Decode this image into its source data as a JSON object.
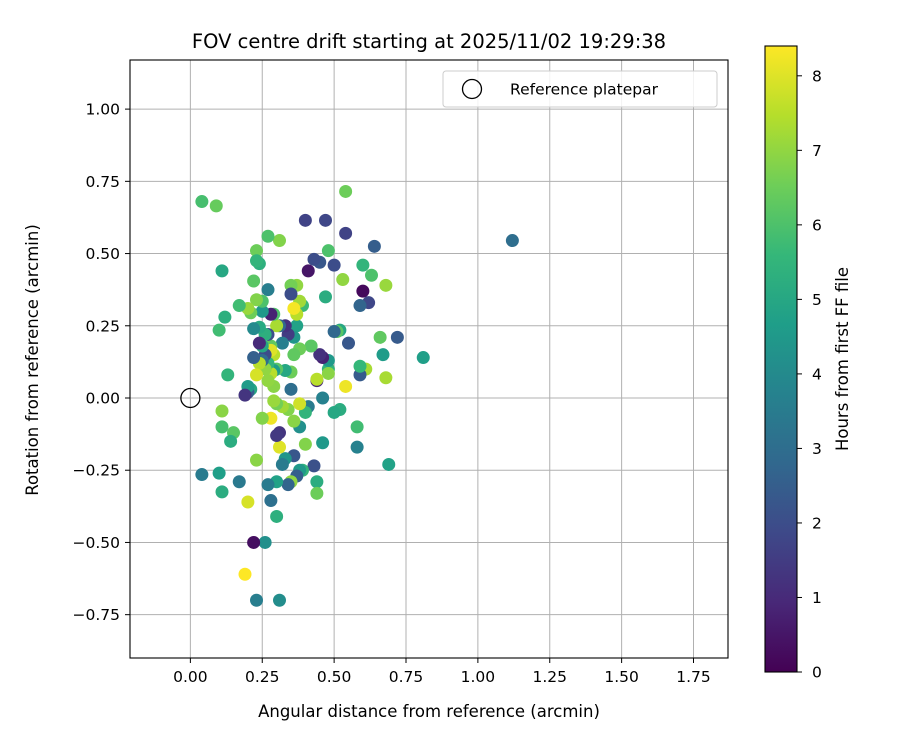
{
  "chart_data": {
    "type": "scatter",
    "title": "FOV centre drift starting at 2025/11/02 19:29:38",
    "xlabel": "Angular distance from reference (arcmin)",
    "ylabel": "Rotation from reference (arcmin)",
    "xlim": [
      -0.21,
      1.87
    ],
    "ylim": [
      -0.9,
      1.17
    ],
    "xticks": [
      0.0,
      0.25,
      0.5,
      0.75,
      1.0,
      1.25,
      1.5,
      1.75
    ],
    "xtick_labels": [
      "0.00",
      "0.25",
      "0.50",
      "0.75",
      "1.00",
      "1.25",
      "1.50",
      "1.75"
    ],
    "yticks": [
      -0.75,
      -0.5,
      -0.25,
      0.0,
      0.25,
      0.5,
      0.75,
      1.0
    ],
    "ytick_labels": [
      "−0.75",
      "−0.50",
      "−0.25",
      "0.00",
      "0.25",
      "0.50",
      "0.75",
      "1.00"
    ],
    "grid": true,
    "legend": {
      "position": "top-right",
      "entries": [
        "Reference platepar"
      ]
    },
    "reference_point": {
      "x": 0.0,
      "y": 0.0,
      "label": "Reference platepar"
    },
    "colorbar": {
      "label": "Hours from first FF file",
      "range": [
        0,
        8.4
      ],
      "ticks": [
        0,
        1,
        2,
        3,
        4,
        5,
        6,
        7,
        8
      ],
      "tick_labels": [
        "0",
        "1",
        "2",
        "3",
        "4",
        "5",
        "6",
        "7",
        "8"
      ],
      "colormap": "viridis"
    },
    "colormap_stops": [
      "#440154",
      "#482878",
      "#3e4989",
      "#31688e",
      "#26828e",
      "#1f9e89",
      "#35b779",
      "#6ece58",
      "#b5de2b",
      "#fde725"
    ],
    "points": [
      {
        "x": 1.12,
        "y": 0.545,
        "c": 3.0
      },
      {
        "x": 0.81,
        "y": 0.14,
        "c": 4.7
      },
      {
        "x": 0.72,
        "y": 0.21,
        "c": 2.4
      },
      {
        "x": 0.69,
        "y": -0.23,
        "c": 4.8
      },
      {
        "x": 0.68,
        "y": 0.07,
        "c": 7.3
      },
      {
        "x": 0.68,
        "y": 0.39,
        "c": 7.1
      },
      {
        "x": 0.67,
        "y": 0.15,
        "c": 4.6
      },
      {
        "x": 0.66,
        "y": 0.21,
        "c": 6.3
      },
      {
        "x": 0.64,
        "y": 0.525,
        "c": 2.5
      },
      {
        "x": 0.63,
        "y": 0.425,
        "c": 6.0
      },
      {
        "x": 0.62,
        "y": 0.33,
        "c": 1.8
      },
      {
        "x": 0.61,
        "y": 0.1,
        "c": 7.3
      },
      {
        "x": 0.6,
        "y": 0.37,
        "c": 0.2
      },
      {
        "x": 0.6,
        "y": 0.46,
        "c": 5.5
      },
      {
        "x": 0.59,
        "y": 0.08,
        "c": 2.4
      },
      {
        "x": 0.59,
        "y": 0.32,
        "c": 2.7
      },
      {
        "x": 0.59,
        "y": 0.11,
        "c": 5.6
      },
      {
        "x": 0.58,
        "y": -0.1,
        "c": 5.8
      },
      {
        "x": 0.58,
        "y": -0.17,
        "c": 3.7
      },
      {
        "x": 0.55,
        "y": 0.19,
        "c": 2.3
      },
      {
        "x": 0.54,
        "y": 0.57,
        "c": 1.7
      },
      {
        "x": 0.54,
        "y": 0.715,
        "c": 6.5
      },
      {
        "x": 0.54,
        "y": 0.04,
        "c": 8.2
      },
      {
        "x": 0.53,
        "y": 0.41,
        "c": 7.0
      },
      {
        "x": 0.52,
        "y": 0.235,
        "c": 5.0
      },
      {
        "x": 0.52,
        "y": -0.04,
        "c": 5.2
      },
      {
        "x": 0.51,
        "y": 0.23,
        "c": 6.2
      },
      {
        "x": 0.5,
        "y": -0.05,
        "c": 5.0
      },
      {
        "x": 0.5,
        "y": 0.46,
        "c": 2.0
      },
      {
        "x": 0.5,
        "y": 0.23,
        "c": 2.8
      },
      {
        "x": 0.48,
        "y": 0.1,
        "c": 5.5
      },
      {
        "x": 0.48,
        "y": 0.085,
        "c": 6.9
      },
      {
        "x": 0.48,
        "y": 0.13,
        "c": 4.5
      },
      {
        "x": 0.48,
        "y": 0.51,
        "c": 6.0
      },
      {
        "x": 0.47,
        "y": 0.615,
        "c": 1.8
      },
      {
        "x": 0.47,
        "y": 0.35,
        "c": 5.2
      },
      {
        "x": 0.46,
        "y": 0.14,
        "c": 0.8
      },
      {
        "x": 0.46,
        "y": -0.155,
        "c": 4.5
      },
      {
        "x": 0.46,
        "y": 0.0,
        "c": 3.7
      },
      {
        "x": 0.45,
        "y": 0.47,
        "c": 2.3
      },
      {
        "x": 0.45,
        "y": 0.15,
        "c": 1.2
      },
      {
        "x": 0.44,
        "y": 0.06,
        "c": 0.9
      },
      {
        "x": 0.44,
        "y": 0.065,
        "c": 7.5
      },
      {
        "x": 0.44,
        "y": -0.29,
        "c": 5.2
      },
      {
        "x": 0.44,
        "y": -0.33,
        "c": 6.5
      },
      {
        "x": 0.43,
        "y": 0.48,
        "c": 2.0
      },
      {
        "x": 0.43,
        "y": -0.235,
        "c": 2.1
      },
      {
        "x": 0.42,
        "y": 0.18,
        "c": 6.2
      },
      {
        "x": 0.41,
        "y": -0.03,
        "c": 3.5
      },
      {
        "x": 0.41,
        "y": 0.44,
        "c": 0.5
      },
      {
        "x": 0.4,
        "y": 0.615,
        "c": 1.7
      },
      {
        "x": 0.4,
        "y": -0.05,
        "c": 5.5
      },
      {
        "x": 0.4,
        "y": -0.16,
        "c": 6.8
      },
      {
        "x": 0.39,
        "y": -0.25,
        "c": 5.5
      },
      {
        "x": 0.39,
        "y": 0.32,
        "c": 5.7
      },
      {
        "x": 0.38,
        "y": 0.17,
        "c": 6.5
      },
      {
        "x": 0.38,
        "y": -0.02,
        "c": 7.8
      },
      {
        "x": 0.38,
        "y": -0.25,
        "c": 4.5
      },
      {
        "x": 0.38,
        "y": -0.1,
        "c": 4.2
      },
      {
        "x": 0.38,
        "y": 0.335,
        "c": 7.2
      },
      {
        "x": 0.37,
        "y": 0.25,
        "c": 4.8
      },
      {
        "x": 0.37,
        "y": -0.27,
        "c": 2.5
      },
      {
        "x": 0.37,
        "y": 0.39,
        "c": 7.0
      },
      {
        "x": 0.37,
        "y": 0.29,
        "c": 7.5
      },
      {
        "x": 0.36,
        "y": 0.31,
        "c": 8.3
      },
      {
        "x": 0.36,
        "y": -0.08,
        "c": 6.9
      },
      {
        "x": 0.36,
        "y": 0.15,
        "c": 6.3
      },
      {
        "x": 0.36,
        "y": 0.21,
        "c": 4.4
      },
      {
        "x": 0.36,
        "y": -0.2,
        "c": 2.3
      },
      {
        "x": 0.35,
        "y": 0.03,
        "c": 3.0
      },
      {
        "x": 0.35,
        "y": 0.39,
        "c": 6.6
      },
      {
        "x": 0.35,
        "y": 0.09,
        "c": 6.5
      },
      {
        "x": 0.35,
        "y": -0.29,
        "c": 7.0
      },
      {
        "x": 0.35,
        "y": 0.36,
        "c": 2.0
      },
      {
        "x": 0.34,
        "y": -0.3,
        "c": 2.7
      },
      {
        "x": 0.34,
        "y": 0.22,
        "c": 1.5
      },
      {
        "x": 0.34,
        "y": -0.04,
        "c": 6.8
      },
      {
        "x": 0.33,
        "y": 0.25,
        "c": 1.2
      },
      {
        "x": 0.33,
        "y": -0.21,
        "c": 4.4
      },
      {
        "x": 0.33,
        "y": 0.095,
        "c": 5.0
      },
      {
        "x": 0.32,
        "y": 0.19,
        "c": 3.6
      },
      {
        "x": 0.32,
        "y": -0.23,
        "c": 3.5
      },
      {
        "x": 0.32,
        "y": -0.03,
        "c": 7.2
      },
      {
        "x": 0.31,
        "y": 0.25,
        "c": 2.8
      },
      {
        "x": 0.31,
        "y": -0.17,
        "c": 8.0
      },
      {
        "x": 0.31,
        "y": -0.12,
        "c": 1.3
      },
      {
        "x": 0.31,
        "y": -0.7,
        "c": 4.1
      },
      {
        "x": 0.31,
        "y": 0.545,
        "c": 6.8
      },
      {
        "x": 0.3,
        "y": 0.1,
        "c": 6.2
      },
      {
        "x": 0.3,
        "y": -0.13,
        "c": 1.4
      },
      {
        "x": 0.3,
        "y": -0.29,
        "c": 4.8
      },
      {
        "x": 0.3,
        "y": -0.41,
        "c": 5.3
      },
      {
        "x": 0.3,
        "y": 0.25,
        "c": 7.3
      },
      {
        "x": 0.3,
        "y": -0.02,
        "c": 6.6
      },
      {
        "x": 0.29,
        "y": 0.29,
        "c": 6.0
      },
      {
        "x": 0.29,
        "y": -0.01,
        "c": 7.1
      },
      {
        "x": 0.29,
        "y": 0.04,
        "c": 6.9
      },
      {
        "x": 0.29,
        "y": 0.095,
        "c": 4.6
      },
      {
        "x": 0.29,
        "y": 0.15,
        "c": 7.5
      },
      {
        "x": 0.28,
        "y": 0.29,
        "c": 0.8
      },
      {
        "x": 0.28,
        "y": -0.07,
        "c": 8.2
      },
      {
        "x": 0.28,
        "y": 0.085,
        "c": 7.5
      },
      {
        "x": 0.28,
        "y": 0.18,
        "c": 6.3
      },
      {
        "x": 0.28,
        "y": -0.355,
        "c": 3.1
      },
      {
        "x": 0.28,
        "y": 0.165,
        "c": 8.0
      },
      {
        "x": 0.27,
        "y": 0.22,
        "c": 2.0
      },
      {
        "x": 0.27,
        "y": 0.12,
        "c": 5.5
      },
      {
        "x": 0.27,
        "y": 0.06,
        "c": 7.0
      },
      {
        "x": 0.27,
        "y": 0.375,
        "c": 3.6
      },
      {
        "x": 0.27,
        "y": 0.56,
        "c": 6.0
      },
      {
        "x": 0.27,
        "y": -0.3,
        "c": 3.5
      },
      {
        "x": 0.26,
        "y": -0.5,
        "c": 4.2
      },
      {
        "x": 0.26,
        "y": 0.15,
        "c": 2.0
      },
      {
        "x": 0.26,
        "y": 0.1,
        "c": 7.0
      },
      {
        "x": 0.26,
        "y": 0.22,
        "c": 5.3
      },
      {
        "x": 0.25,
        "y": -0.07,
        "c": 6.8
      },
      {
        "x": 0.25,
        "y": 0.3,
        "c": 4.5
      },
      {
        "x": 0.25,
        "y": 0.18,
        "c": 5.0
      },
      {
        "x": 0.25,
        "y": 0.335,
        "c": 6.0
      },
      {
        "x": 0.25,
        "y": 0.13,
        "c": 3.0
      },
      {
        "x": 0.24,
        "y": 0.465,
        "c": 5.3
      },
      {
        "x": 0.24,
        "y": 0.19,
        "c": 1.0
      },
      {
        "x": 0.24,
        "y": 0.245,
        "c": 5.1
      },
      {
        "x": 0.24,
        "y": 0.12,
        "c": 7.5
      },
      {
        "x": 0.23,
        "y": 0.51,
        "c": 6.5
      },
      {
        "x": 0.23,
        "y": 0.475,
        "c": 5.5
      },
      {
        "x": 0.23,
        "y": 0.08,
        "c": 7.9
      },
      {
        "x": 0.23,
        "y": 0.34,
        "c": 6.8
      },
      {
        "x": 0.23,
        "y": -0.215,
        "c": 6.9
      },
      {
        "x": 0.23,
        "y": -0.7,
        "c": 3.6
      },
      {
        "x": 0.22,
        "y": 0.24,
        "c": 4.0
      },
      {
        "x": 0.22,
        "y": 0.405,
        "c": 6.2
      },
      {
        "x": 0.22,
        "y": -0.5,
        "c": 0.3
      },
      {
        "x": 0.22,
        "y": 0.14,
        "c": 2.6
      },
      {
        "x": 0.21,
        "y": 0.295,
        "c": 6.5
      },
      {
        "x": 0.21,
        "y": 0.03,
        "c": 5.0
      },
      {
        "x": 0.2,
        "y": 0.02,
        "c": 2.5
      },
      {
        "x": 0.2,
        "y": 0.31,
        "c": 7.1
      },
      {
        "x": 0.2,
        "y": 0.04,
        "c": 4.6
      },
      {
        "x": 0.2,
        "y": -0.36,
        "c": 7.9
      },
      {
        "x": 0.19,
        "y": -0.61,
        "c": 8.4
      },
      {
        "x": 0.19,
        "y": 0.01,
        "c": 1.3
      },
      {
        "x": 0.17,
        "y": -0.29,
        "c": 3.4
      },
      {
        "x": 0.17,
        "y": 0.32,
        "c": 5.8
      },
      {
        "x": 0.15,
        "y": -0.12,
        "c": 6.2
      },
      {
        "x": 0.14,
        "y": -0.15,
        "c": 5.2
      },
      {
        "x": 0.13,
        "y": 0.08,
        "c": 5.5
      },
      {
        "x": 0.12,
        "y": 0.28,
        "c": 5.3
      },
      {
        "x": 0.11,
        "y": -0.1,
        "c": 5.9
      },
      {
        "x": 0.11,
        "y": -0.045,
        "c": 6.9
      },
      {
        "x": 0.11,
        "y": -0.325,
        "c": 5.2
      },
      {
        "x": 0.11,
        "y": 0.44,
        "c": 5.0
      },
      {
        "x": 0.1,
        "y": -0.26,
        "c": 4.7
      },
      {
        "x": 0.1,
        "y": 0.235,
        "c": 5.8
      },
      {
        "x": 0.09,
        "y": 0.665,
        "c": 6.4
      },
      {
        "x": 0.04,
        "y": 0.68,
        "c": 5.9
      },
      {
        "x": 0.04,
        "y": -0.265,
        "c": 3.5
      }
    ]
  }
}
